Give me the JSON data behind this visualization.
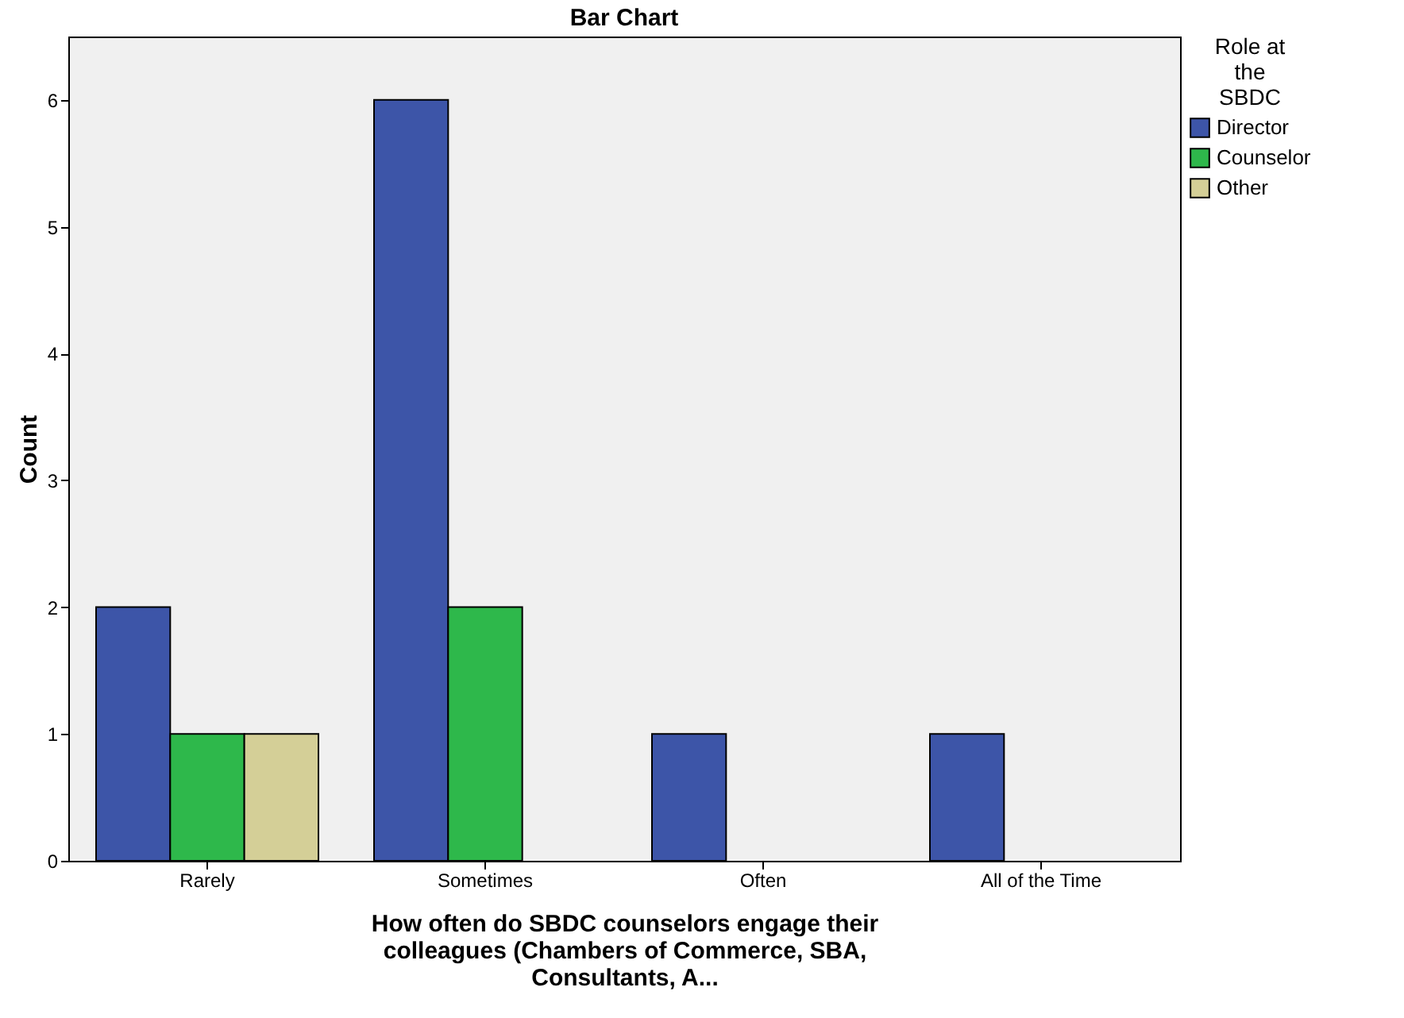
{
  "chart_data": {
    "type": "bar",
    "title": "Bar Chart",
    "xlabel": "How  often do SBDC counselors engage their\ncolleagues (Chambers of  Commerce, SBA,\nConsultants, A...",
    "ylabel": "Count",
    "legend_title": "Role at\nthe\nSBDC",
    "categories": [
      "Rarely",
      "Sometimes",
      "Often",
      "All of the Time"
    ],
    "series": [
      {
        "name": "Director",
        "color": "#3d55a8",
        "values": [
          2,
          6,
          1,
          1
        ]
      },
      {
        "name": "Counselor",
        "color": "#2eb84b",
        "values": [
          1,
          2,
          null,
          null
        ]
      },
      {
        "name": "Other",
        "color": "#d4cf97",
        "values": [
          1,
          null,
          null,
          null
        ]
      }
    ],
    "ylim": [
      0,
      6.5
    ],
    "yticks": [
      0,
      1,
      2,
      3,
      4,
      5,
      6
    ],
    "grid": false,
    "legend": "top right"
  }
}
